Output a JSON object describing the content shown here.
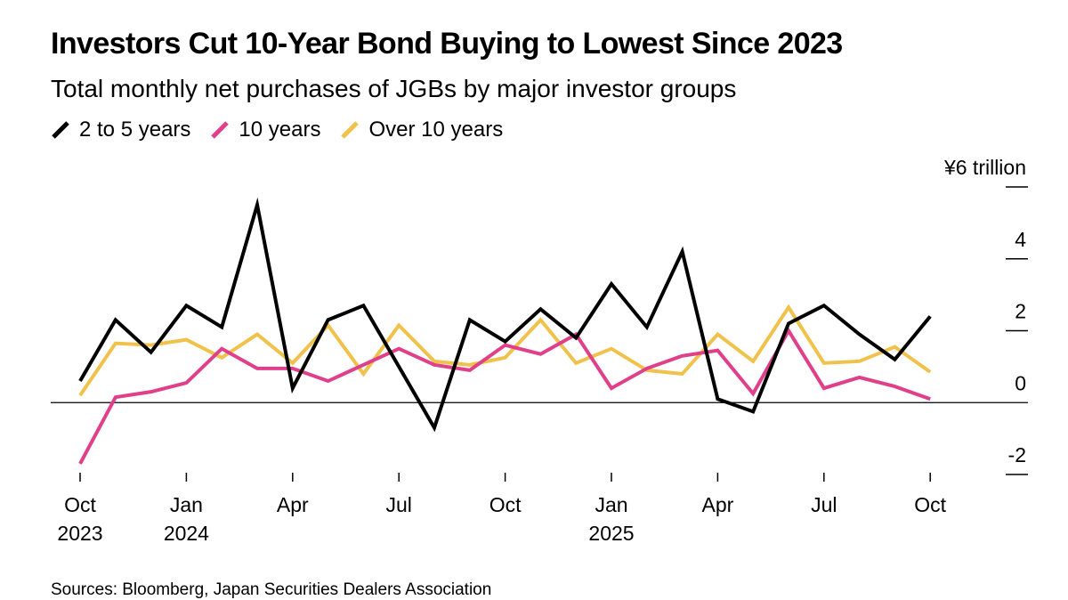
{
  "header": {
    "title": "Investors Cut 10-Year Bond Buying to Lowest Since 2023",
    "subtitle": "Total monthly net purchases of JGBs by major investor groups"
  },
  "legend": {
    "items": [
      {
        "label": "2 to 5 years",
        "color": "#000000"
      },
      {
        "label": "10 years",
        "color": "#e0408a"
      },
      {
        "label": "Over 10 years",
        "color": "#f0c24b"
      }
    ]
  },
  "source": "Sources: Bloomberg, Japan Securities Dealers Association",
  "chart_data": {
    "type": "line",
    "title": "Investors Cut 10-Year Bond Buying to Lowest Since 2023",
    "subtitle": "Total monthly net purchases of JGBs by major investor groups",
    "unit_label": "¥6 trillion",
    "ylim": [
      -2,
      6
    ],
    "yticks": [
      6,
      4,
      2,
      0,
      -2
    ],
    "ytick_labels": [
      "¥6 trillion",
      "4",
      "2",
      "0",
      "-2"
    ],
    "x": [
      "2023-10",
      "2023-11",
      "2023-12",
      "2024-01",
      "2024-02",
      "2024-03",
      "2024-04",
      "2024-05",
      "2024-06",
      "2024-07",
      "2024-08",
      "2024-09",
      "2024-10",
      "2024-11",
      "2024-12",
      "2025-01",
      "2025-02",
      "2025-03",
      "2025-04",
      "2025-05",
      "2025-06",
      "2025-07",
      "2025-08",
      "2025-09",
      "2025-10",
      "2025-11"
    ],
    "xticks": [
      {
        "index": 0,
        "label": "Oct",
        "year": "2023"
      },
      {
        "index": 3,
        "label": "Jan",
        "year": "2024"
      },
      {
        "index": 6,
        "label": "Apr",
        "year": ""
      },
      {
        "index": 9,
        "label": "Jul",
        "year": ""
      },
      {
        "index": 12,
        "label": "Oct",
        "year": ""
      },
      {
        "index": 15,
        "label": "Jan",
        "year": "2025"
      },
      {
        "index": 18,
        "label": "Apr",
        "year": ""
      },
      {
        "index": 21,
        "label": "Jul",
        "year": ""
      },
      {
        "index": 24,
        "label": "Oct",
        "year": ""
      }
    ],
    "series": [
      {
        "name": "2 to 5 years",
        "color": "#000000",
        "values": [
          0.6,
          2.3,
          1.4,
          2.7,
          2.1,
          5.5,
          0.4,
          2.3,
          2.7,
          1.0,
          -0.7,
          2.3,
          1.7,
          2.6,
          1.8,
          3.3,
          2.1,
          4.2,
          0.1,
          -0.25,
          2.2,
          2.7,
          1.9,
          1.2,
          2.4,
          null
        ]
      },
      {
        "name": "10 years",
        "color": "#e0408a",
        "values": [
          -1.7,
          0.15,
          0.3,
          0.55,
          1.5,
          0.95,
          0.95,
          0.6,
          1.05,
          1.5,
          1.05,
          0.9,
          1.6,
          1.35,
          1.9,
          0.4,
          0.95,
          1.3,
          1.45,
          0.25,
          2.0,
          0.4,
          0.7,
          0.45,
          0.1,
          null
        ]
      },
      {
        "name": "Over 10 years",
        "color": "#f0c24b",
        "values": [
          0.2,
          1.65,
          1.6,
          1.75,
          1.25,
          1.9,
          1.1,
          2.15,
          0.8,
          2.15,
          1.15,
          1.05,
          1.25,
          2.3,
          1.1,
          1.5,
          0.9,
          0.8,
          1.9,
          1.15,
          2.65,
          1.1,
          1.15,
          1.55,
          0.85,
          null
        ]
      }
    ]
  }
}
